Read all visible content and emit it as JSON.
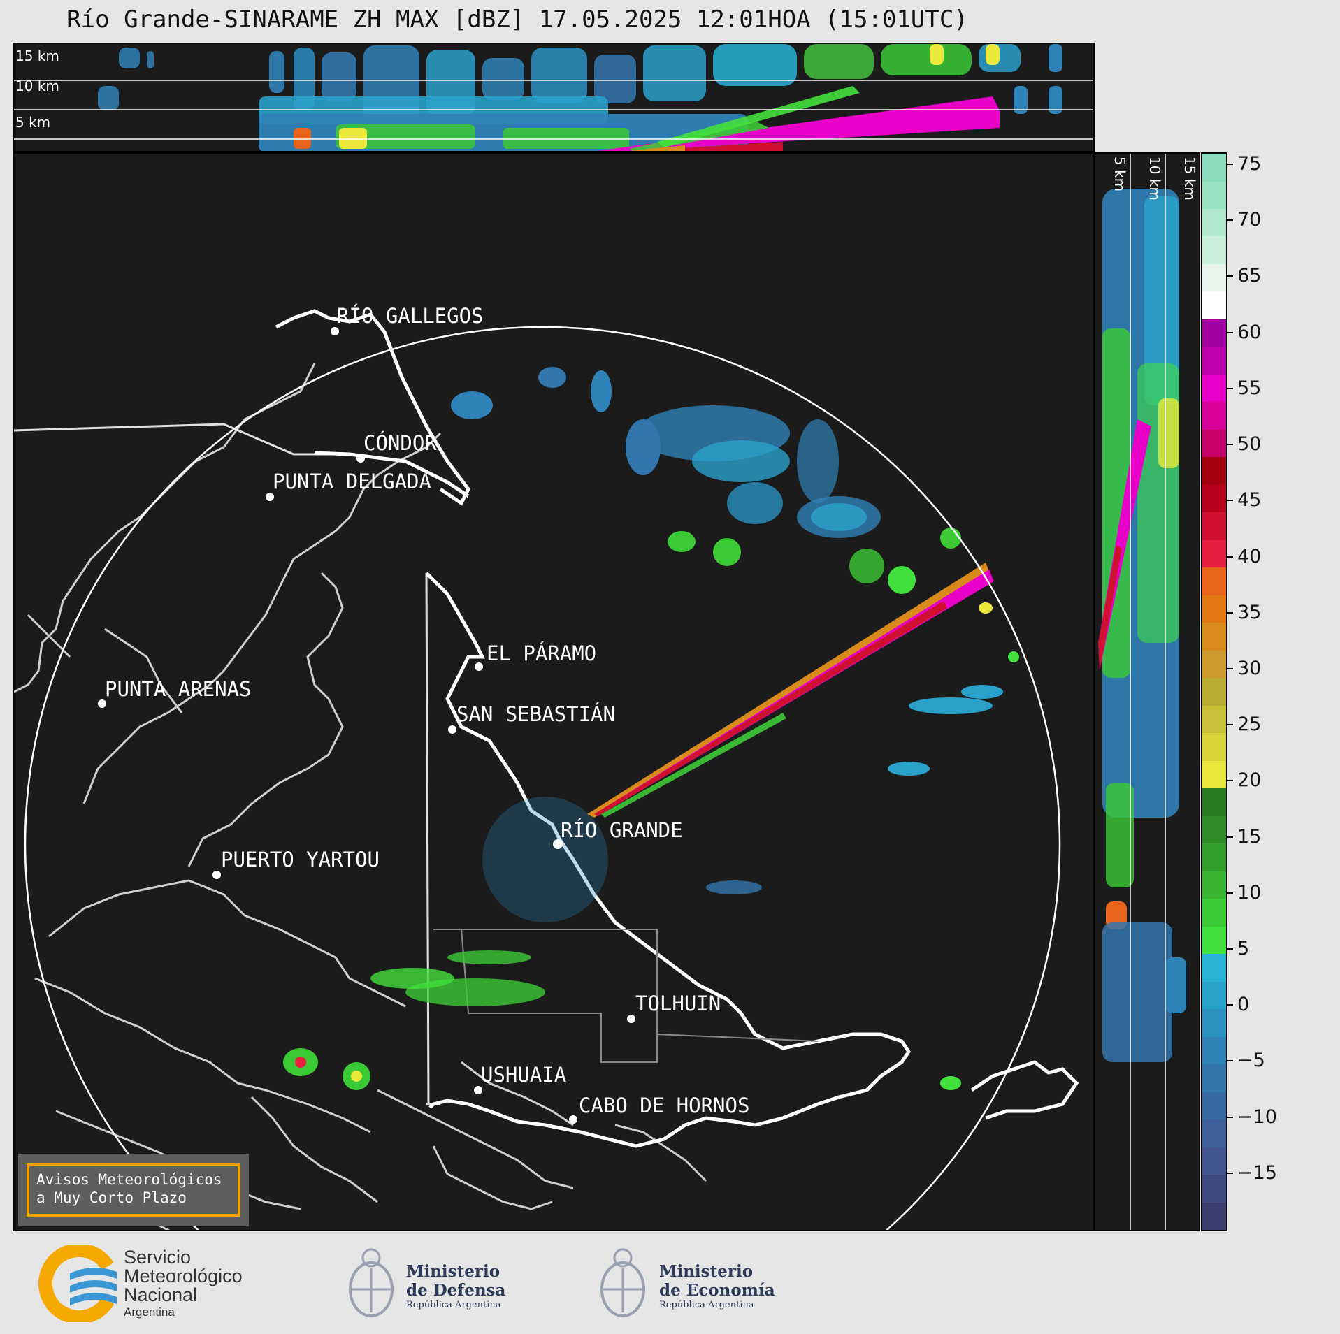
{
  "title": "Río Grande-SINARAME ZH MAX [dBZ] 17.05.2025 12:01HOA (15:01UTC)",
  "top_panel": {
    "altitudes": [
      "15 km",
      "10 km",
      "5 km"
    ]
  },
  "side_panel": {
    "altitudes": [
      "5 km",
      "10 km",
      "15 km"
    ]
  },
  "map": {
    "cities": [
      {
        "name": "RÍO GALLEGOS"
      },
      {
        "name": "CÓNDOR"
      },
      {
        "name": "PUNTA DELGADA"
      },
      {
        "name": "EL PÁRAMO"
      },
      {
        "name": "SAN SEBASTIÁN"
      },
      {
        "name": "PUNTA ARENAS"
      },
      {
        "name": "RÍO GRANDE"
      },
      {
        "name": "PUERTO YARTOU"
      },
      {
        "name": "TOLHUIN"
      },
      {
        "name": "USHUAIA"
      },
      {
        "name": "CABO DE HORNOS"
      }
    ],
    "radar_site": "RÍO GRANDE",
    "range_ring": true
  },
  "colorbar": {
    "unit": "dBZ",
    "ticks": [
      "75",
      "70",
      "65",
      "60",
      "55",
      "50",
      "45",
      "40",
      "35",
      "30",
      "25",
      "20",
      "15",
      "10",
      "5",
      "0",
      "−5",
      "−10",
      "−15"
    ],
    "min": -20,
    "max": 76,
    "colors": [
      "#3a3d6e",
      "#3f4a80",
      "#42568f",
      "#3d609a",
      "#376aa3",
      "#3375ad",
      "#2f82b7",
      "#2b91c1",
      "#2aa1cb",
      "#29b2d6",
      "#42e03c",
      "#3cc936",
      "#38b530",
      "#33a12c",
      "#2f8d27",
      "#2a7a22",
      "#eae83a",
      "#d8d43a",
      "#c9c03a",
      "#b8ac34",
      "#cc9a2e",
      "#d88a1a",
      "#e17712",
      "#e8641a",
      "#e82040",
      "#cf1030",
      "#b8001c",
      "#a30010",
      "#c8006a",
      "#d8009a",
      "#e800c8",
      "#c000b0",
      "#a000a0",
      "#ffffff",
      "#e8f5ec",
      "#c8eedc",
      "#b0e8d0",
      "#98e2c4",
      "#88dcbc"
    ]
  },
  "avisos": {
    "line1": "Avisos Meteorológicos",
    "line2": "a Muy Corto Plazo"
  },
  "footer": {
    "smn": {
      "line1": "Servicio",
      "line2": "Meteorológico",
      "line3": "Nacional",
      "line4": "Argentina"
    },
    "defensa": {
      "line1": "Ministerio",
      "line2": "de Defensa",
      "line3": "República Argentina"
    },
    "economia": {
      "line1": "Ministerio",
      "line2": "de Economía",
      "line3": "República Argentina"
    }
  }
}
